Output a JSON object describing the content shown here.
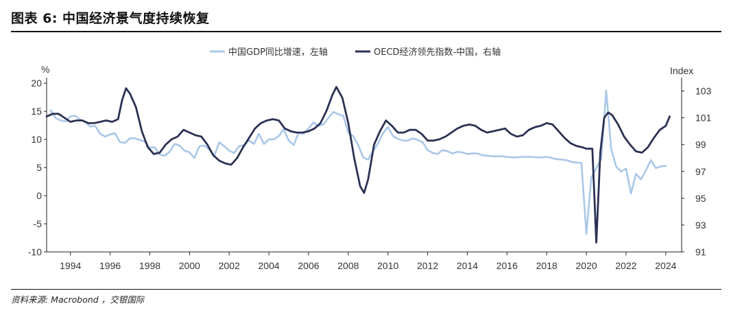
{
  "header": {
    "title": "图表 6: 中国经济景气度持续恢复"
  },
  "footer": {
    "source": "资料来源: Macrobond ，交银国际"
  },
  "colors": {
    "gdp": "#a9c7e8",
    "oecd": "#2b3153",
    "axis": "#222222"
  },
  "chart_data": {
    "type": "line",
    "legend_position": "top-center",
    "grid": false,
    "left_axis": {
      "unit": "%",
      "ylim": [
        -10,
        21
      ],
      "ticks": [
        20,
        15,
        10,
        5,
        0,
        -5,
        -10
      ]
    },
    "right_axis": {
      "unit": "Index",
      "ylim": [
        91,
        104
      ],
      "ticks": [
        103,
        101,
        99,
        97,
        95,
        93,
        91
      ]
    },
    "x_axis": {
      "xlim": [
        1992.8,
        2024.8
      ],
      "ticks": [
        1994,
        1996,
        1998,
        2000,
        2002,
        2004,
        2006,
        2008,
        2010,
        2012,
        2014,
        2016,
        2018,
        2020,
        2022,
        2024
      ]
    },
    "series": [
      {
        "name": "中国GDP同比增速，左轴",
        "axis": "left",
        "x": [
          1993.0,
          1993.25,
          1993.5,
          1993.75,
          1994.0,
          1994.25,
          1994.5,
          1994.75,
          1995.0,
          1995.25,
          1995.5,
          1995.75,
          1996.0,
          1996.25,
          1996.5,
          1996.75,
          1997.0,
          1997.25,
          1997.5,
          1997.75,
          1998.0,
          1998.25,
          1998.5,
          1998.75,
          1999.0,
          1999.25,
          1999.5,
          1999.75,
          2000.0,
          2000.25,
          2000.5,
          2000.75,
          2001.0,
          2001.25,
          2001.5,
          2001.75,
          2002.0,
          2002.25,
          2002.5,
          2002.75,
          2003.0,
          2003.25,
          2003.5,
          2003.75,
          2004.0,
          2004.25,
          2004.5,
          2004.75,
          2005.0,
          2005.25,
          2005.5,
          2005.75,
          2006.0,
          2006.25,
          2006.5,
          2006.75,
          2007.0,
          2007.25,
          2007.5,
          2007.75,
          2008.0,
          2008.25,
          2008.5,
          2008.75,
          2009.0,
          2009.25,
          2009.5,
          2009.75,
          2010.0,
          2010.25,
          2010.5,
          2010.75,
          2011.0,
          2011.25,
          2011.5,
          2011.75,
          2012.0,
          2012.25,
          2012.5,
          2012.75,
          2013.0,
          2013.25,
          2013.5,
          2013.75,
          2014.0,
          2014.25,
          2014.5,
          2014.75,
          2015.0,
          2015.25,
          2015.5,
          2015.75,
          2016.0,
          2016.25,
          2016.5,
          2016.75,
          2017.0,
          2017.25,
          2017.5,
          2017.75,
          2018.0,
          2018.25,
          2018.5,
          2018.75,
          2019.0,
          2019.25,
          2019.5,
          2019.75,
          2020.0,
          2020.25,
          2020.5,
          2020.75,
          2021.0,
          2021.25,
          2021.5,
          2021.75,
          2022.0,
          2022.25,
          2022.5,
          2022.75,
          2023.0,
          2023.25,
          2023.5,
          2023.75,
          2024.0
        ],
        "values": [
          15.2,
          13.8,
          13.4,
          13.2,
          14.1,
          14.2,
          13.5,
          13.1,
          12.3,
          12.4,
          11.0,
          10.5,
          10.9,
          11.1,
          9.5,
          9.4,
          10.2,
          10.2,
          9.9,
          9.6,
          8.5,
          8.6,
          7.3,
          7.1,
          7.8,
          9.2,
          8.9,
          8.0,
          7.7,
          6.7,
          8.8,
          8.9,
          8.2,
          7.1,
          9.5,
          8.8,
          8.0,
          7.6,
          8.8,
          9.0,
          9.8,
          9.2,
          11.0,
          9.2,
          10.0,
          10.0,
          10.6,
          11.8,
          9.8,
          9.0,
          11.2,
          11.0,
          12.0,
          13.0,
          12.4,
          12.7,
          13.8,
          14.9,
          14.5,
          14.2,
          11.2,
          10.6,
          9.0,
          6.8,
          6.4,
          7.9,
          9.3,
          11.1,
          12.2,
          10.6,
          10.1,
          9.8,
          9.8,
          10.2,
          9.9,
          9.5,
          8.1,
          7.6,
          7.4,
          8.1,
          7.9,
          7.5,
          7.8,
          7.7,
          7.4,
          7.5,
          7.5,
          7.2,
          7.1,
          7.0,
          7.0,
          7.0,
          6.9,
          6.8,
          6.8,
          6.9,
          6.9,
          6.9,
          6.8,
          6.8,
          6.9,
          6.7,
          6.5,
          6.4,
          6.3,
          6.0,
          5.9,
          5.8,
          -6.8,
          3.2,
          4.9,
          6.5,
          18.7,
          8.3,
          5.2,
          4.3,
          4.8,
          0.4,
          3.9,
          2.9,
          4.5,
          6.3,
          4.9,
          5.2,
          5.3
        ]
      },
      {
        "name": "OECD经济领先指数-中国，右轴",
        "axis": "right",
        "x": [
          1992.8,
          1993.1,
          1993.4,
          1993.7,
          1994.0,
          1994.3,
          1994.6,
          1994.9,
          1995.2,
          1995.5,
          1995.8,
          1996.1,
          1996.4,
          1996.6,
          1996.8,
          1997.0,
          1997.3,
          1997.6,
          1997.9,
          1998.2,
          1998.5,
          1998.8,
          1999.1,
          1999.4,
          1999.7,
          2000.0,
          2000.3,
          2000.6,
          2000.9,
          2001.2,
          2001.5,
          2001.8,
          2002.1,
          2002.4,
          2002.7,
          2003.0,
          2003.3,
          2003.6,
          2003.9,
          2004.2,
          2004.5,
          2004.8,
          2005.1,
          2005.4,
          2005.7,
          2006.0,
          2006.3,
          2006.6,
          2006.9,
          2007.2,
          2007.4,
          2007.7,
          2008.0,
          2008.3,
          2008.6,
          2008.8,
          2009.0,
          2009.3,
          2009.6,
          2009.9,
          2010.2,
          2010.5,
          2010.8,
          2011.1,
          2011.4,
          2011.7,
          2012.0,
          2012.3,
          2012.6,
          2012.9,
          2013.2,
          2013.5,
          2013.8,
          2014.1,
          2014.4,
          2014.7,
          2015.0,
          2015.3,
          2015.6,
          2015.9,
          2016.2,
          2016.5,
          2016.8,
          2017.1,
          2017.4,
          2017.7,
          2018.0,
          2018.3,
          2018.6,
          2018.9,
          2019.2,
          2019.5,
          2019.8,
          2020.0,
          2020.15,
          2020.3,
          2020.5,
          2020.7,
          2020.9,
          2021.1,
          2021.3,
          2021.6,
          2021.9,
          2022.2,
          2022.5,
          2022.8,
          2023.1,
          2023.4,
          2023.7,
          2024.0,
          2024.2
        ],
        "values": [
          101.1,
          101.3,
          101.3,
          101.0,
          100.7,
          100.8,
          100.8,
          100.6,
          100.6,
          100.7,
          100.8,
          100.7,
          100.9,
          102.3,
          103.2,
          102.8,
          101.8,
          100.0,
          98.8,
          98.3,
          98.4,
          99.0,
          99.4,
          99.6,
          100.1,
          99.9,
          99.7,
          99.6,
          99.0,
          98.2,
          97.8,
          97.6,
          97.5,
          98.0,
          98.8,
          99.5,
          100.2,
          100.6,
          100.8,
          100.9,
          100.8,
          100.2,
          100.0,
          99.9,
          99.9,
          100.0,
          100.2,
          100.6,
          101.5,
          102.7,
          103.3,
          102.5,
          100.6,
          98.0,
          95.9,
          95.4,
          96.4,
          99.0,
          100.0,
          100.8,
          100.4,
          99.9,
          99.9,
          100.1,
          100.1,
          99.8,
          99.3,
          99.3,
          99.4,
          99.6,
          99.9,
          100.2,
          100.4,
          100.5,
          100.4,
          100.1,
          99.9,
          100.0,
          100.1,
          100.2,
          99.8,
          99.6,
          99.7,
          100.1,
          100.3,
          100.4,
          100.6,
          100.5,
          100.0,
          99.5,
          99.1,
          98.9,
          98.8,
          98.7,
          98.7,
          98.7,
          91.7,
          98.4,
          101.0,
          101.4,
          101.2,
          100.5,
          99.6,
          99.0,
          98.5,
          98.4,
          98.8,
          99.5,
          100.1,
          100.4,
          101.1
        ]
      }
    ]
  }
}
